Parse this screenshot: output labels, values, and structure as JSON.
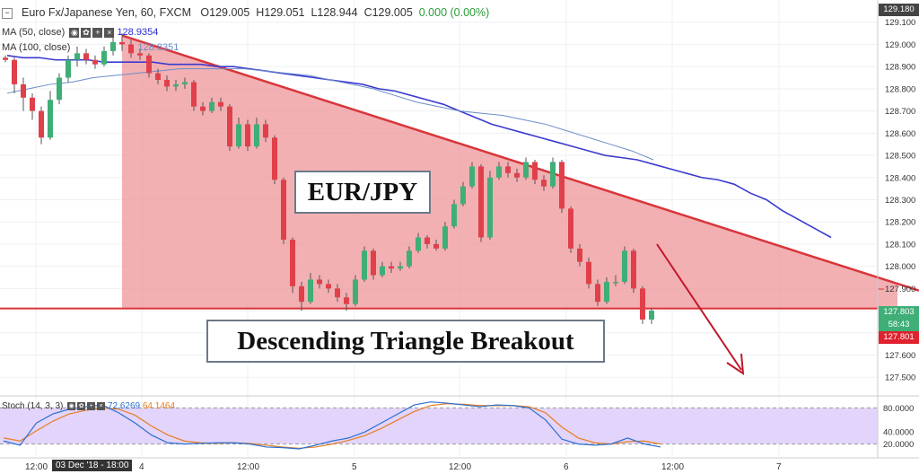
{
  "header": {
    "symbol": "Euro Fx/Japanese Yen, 60, FXCM",
    "open": "O129.005",
    "high": "H129.051",
    "low": "L128.944",
    "close": "C129.005",
    "change": "0.000 (0.00%)"
  },
  "ma50": {
    "label": "MA (50, close)",
    "value": "128.9354"
  },
  "ma100": {
    "label": "MA (100, close)",
    "value": "128.8351"
  },
  "stoch": {
    "label": "Stoch (14, 3, 3)",
    "k": "72.6269",
    "d": "64.1464"
  },
  "boxes": {
    "pair": "EUR/JPY",
    "pattern": "Descending Triangle Breakout"
  },
  "price_labels": {
    "top": "129.180",
    "current": "127.803",
    "countdown": "58:43",
    "breakout": "127.801"
  },
  "x_highlight": "03 Dec '18 - 18:00",
  "colors": {
    "bull": "#3fae77",
    "bear": "#e0404a",
    "triangle_fill": "#ee9a9e",
    "triangle_line": "#d9353a",
    "ma50": "#3b3bd0",
    "ma100": "#6a8cc8",
    "arrow": "#c0192b",
    "stoch_bg": "#e3d4fb",
    "stoch_k": "#2a6fd0",
    "stoch_d": "#e67e22"
  },
  "chart_data": {
    "type": "candlestick",
    "price_axis_ticks": [
      "129.100",
      "129.000",
      "128.900",
      "128.800",
      "128.700",
      "128.600",
      "128.500",
      "128.400",
      "128.300",
      "128.200",
      "128.100",
      "128.000",
      "127.900",
      "127.800",
      "127.700",
      "127.600",
      "127.500"
    ],
    "time_axis_ticks": [
      "12:00",
      "4",
      "12:00",
      "5",
      "12:00",
      "6",
      "12:00",
      "7"
    ],
    "ylim": [
      127.42,
      129.2
    ],
    "stoch_ticks": [
      "80.0000",
      "40.0000",
      "20.0000"
    ],
    "stoch_range": [
      0,
      100
    ],
    "candles": [
      [
        128.94,
        128.93,
        128.95,
        128.92
      ],
      [
        128.93,
        128.82,
        128.94,
        128.78
      ],
      [
        128.82,
        128.76,
        128.85,
        128.7
      ],
      [
        128.76,
        128.7,
        128.78,
        128.66
      ],
      [
        128.7,
        128.58,
        128.72,
        128.55
      ],
      [
        128.58,
        128.75,
        128.79,
        128.57
      ],
      [
        128.75,
        128.85,
        128.87,
        128.73
      ],
      [
        128.85,
        128.93,
        128.95,
        128.83
      ],
      [
        128.93,
        128.96,
        128.99,
        128.9
      ],
      [
        128.96,
        128.93,
        128.98,
        128.91
      ],
      [
        128.93,
        128.91,
        128.95,
        128.89
      ],
      [
        128.91,
        128.97,
        128.99,
        128.9
      ],
      [
        128.97,
        129.01,
        129.04,
        128.95
      ],
      [
        129.01,
        129.0,
        129.05,
        128.97
      ],
      [
        129.0,
        128.96,
        129.02,
        128.94
      ],
      [
        128.96,
        128.95,
        128.98,
        128.93
      ],
      [
        128.95,
        128.87,
        128.96,
        128.85
      ],
      [
        128.87,
        128.84,
        128.89,
        128.82
      ],
      [
        128.84,
        128.81,
        128.86,
        128.79
      ],
      [
        128.81,
        128.82,
        128.84,
        128.79
      ],
      [
        128.82,
        128.83,
        128.85,
        128.8
      ],
      [
        128.83,
        128.72,
        128.84,
        128.7
      ],
      [
        128.72,
        128.7,
        128.74,
        128.68
      ],
      [
        128.7,
        128.74,
        128.76,
        128.69
      ],
      [
        128.74,
        128.72,
        128.76,
        128.7
      ],
      [
        128.72,
        128.54,
        128.73,
        128.52
      ],
      [
        128.54,
        128.64,
        128.67,
        128.53
      ],
      [
        128.64,
        128.54,
        128.66,
        128.52
      ],
      [
        128.54,
        128.64,
        128.67,
        128.53
      ],
      [
        128.64,
        128.58,
        128.66,
        128.56
      ],
      [
        128.58,
        128.39,
        128.59,
        128.37
      ],
      [
        128.39,
        128.12,
        128.4,
        128.1
      ],
      [
        128.12,
        127.91,
        128.13,
        127.88
      ],
      [
        127.91,
        127.84,
        127.93,
        127.8
      ],
      [
        127.84,
        127.94,
        127.97,
        127.83
      ],
      [
        127.94,
        127.92,
        127.96,
        127.9
      ],
      [
        127.92,
        127.9,
        127.94,
        127.88
      ],
      [
        127.9,
        127.86,
        127.92,
        127.84
      ],
      [
        127.86,
        127.83,
        127.88,
        127.8
      ],
      [
        127.83,
        127.94,
        127.96,
        127.82
      ],
      [
        127.94,
        128.07,
        128.09,
        127.93
      ],
      [
        128.07,
        127.96,
        128.08,
        127.94
      ],
      [
        127.96,
        128.0,
        128.02,
        127.95
      ],
      [
        128.0,
        127.99,
        128.02,
        127.97
      ],
      [
        127.99,
        128.0,
        128.02,
        127.98
      ],
      [
        128.0,
        128.07,
        128.09,
        127.99
      ],
      [
        128.07,
        128.13,
        128.15,
        128.06
      ],
      [
        128.13,
        128.1,
        128.14,
        128.08
      ],
      [
        128.1,
        128.08,
        128.12,
        128.07
      ],
      [
        128.08,
        128.18,
        128.2,
        128.07
      ],
      [
        128.18,
        128.28,
        128.3,
        128.17
      ],
      [
        128.28,
        128.36,
        128.38,
        128.27
      ],
      [
        128.36,
        128.45,
        128.47,
        128.35
      ],
      [
        128.45,
        128.13,
        128.46,
        128.11
      ],
      [
        128.13,
        128.4,
        128.43,
        128.12
      ],
      [
        128.4,
        128.45,
        128.47,
        128.39
      ],
      [
        128.45,
        128.42,
        128.47,
        128.4
      ],
      [
        128.42,
        128.4,
        128.44,
        128.38
      ],
      [
        128.4,
        128.47,
        128.49,
        128.39
      ],
      [
        128.47,
        128.39,
        128.48,
        128.37
      ],
      [
        128.39,
        128.36,
        128.41,
        128.34
      ],
      [
        128.36,
        128.47,
        128.49,
        128.35
      ],
      [
        128.47,
        128.26,
        128.48,
        128.24
      ],
      [
        128.26,
        128.08,
        128.27,
        128.06
      ],
      [
        128.08,
        128.02,
        128.1,
        128.0
      ],
      [
        128.02,
        127.92,
        128.04,
        127.9
      ],
      [
        127.92,
        127.84,
        127.94,
        127.82
      ],
      [
        127.84,
        127.93,
        127.95,
        127.83
      ],
      [
        127.93,
        127.93,
        127.96,
        127.91
      ],
      [
        127.93,
        128.07,
        128.09,
        127.92
      ],
      [
        128.07,
        127.9,
        128.08,
        127.88
      ],
      [
        127.9,
        127.76,
        127.91,
        127.74
      ],
      [
        127.76,
        127.8,
        127.81,
        127.74
      ]
    ],
    "ma50": [
      128.95,
      128.94,
      128.94,
      128.93,
      128.93,
      128.93,
      128.92,
      128.92,
      128.92,
      128.92,
      128.91,
      128.91,
      128.91,
      128.9,
      128.9,
      128.89,
      128.88,
      128.87,
      128.86,
      128.85,
      128.84,
      128.83,
      128.82,
      128.8,
      128.79,
      128.77,
      128.75,
      128.73,
      128.7,
      128.67,
      128.64,
      128.62,
      128.6,
      128.58,
      128.56,
      128.54,
      128.52,
      128.5,
      128.49,
      128.48,
      128.46,
      128.44,
      128.42,
      128.4,
      128.39,
      128.37,
      128.33,
      128.3,
      128.25,
      128.21,
      128.17,
      128.13
    ],
    "ma50_x_hours": [
      0,
      3,
      6,
      9,
      12,
      15,
      18,
      21,
      24,
      27,
      30,
      33,
      36,
      39,
      42,
      45,
      48,
      51,
      54,
      57,
      60,
      63,
      66,
      69,
      72,
      75,
      78,
      81,
      84,
      87,
      90,
      93,
      96,
      99,
      102,
      105,
      108,
      111,
      114,
      117,
      120,
      123,
      126,
      129,
      132,
      135,
      138,
      141,
      144,
      147,
      150,
      153
    ],
    "ma100": [
      128.78,
      128.8,
      128.82,
      128.83,
      128.85,
      128.86,
      128.87,
      128.88,
      128.89,
      128.89,
      128.89,
      128.89,
      128.88,
      128.87,
      128.86,
      128.84,
      128.82,
      128.8,
      128.77,
      128.74,
      128.72,
      128.7,
      128.69,
      128.68,
      128.66,
      128.64,
      128.61,
      128.58,
      128.55,
      128.52,
      128.48
    ],
    "stoch_k": [
      25,
      18,
      55,
      70,
      78,
      82,
      85,
      72,
      55,
      35,
      22,
      20,
      21,
      22,
      22,
      20,
      15,
      14,
      12,
      18,
      25,
      30,
      40,
      55,
      70,
      85,
      90,
      88,
      85,
      82,
      85,
      84,
      80,
      60,
      28,
      20,
      18,
      20,
      30,
      20,
      15
    ],
    "stoch_d": [
      30,
      25,
      42,
      58,
      70,
      76,
      80,
      78,
      68,
      50,
      35,
      25,
      22,
      21,
      22,
      21,
      18,
      15,
      13,
      15,
      20,
      26,
      34,
      46,
      60,
      74,
      84,
      87,
      86,
      84,
      84,
      84,
      82,
      72,
      48,
      30,
      22,
      20,
      24,
      25,
      20
    ],
    "triangle": {
      "upper_start": 129.04,
      "upper_end": 127.95,
      "support": 127.81
    }
  }
}
